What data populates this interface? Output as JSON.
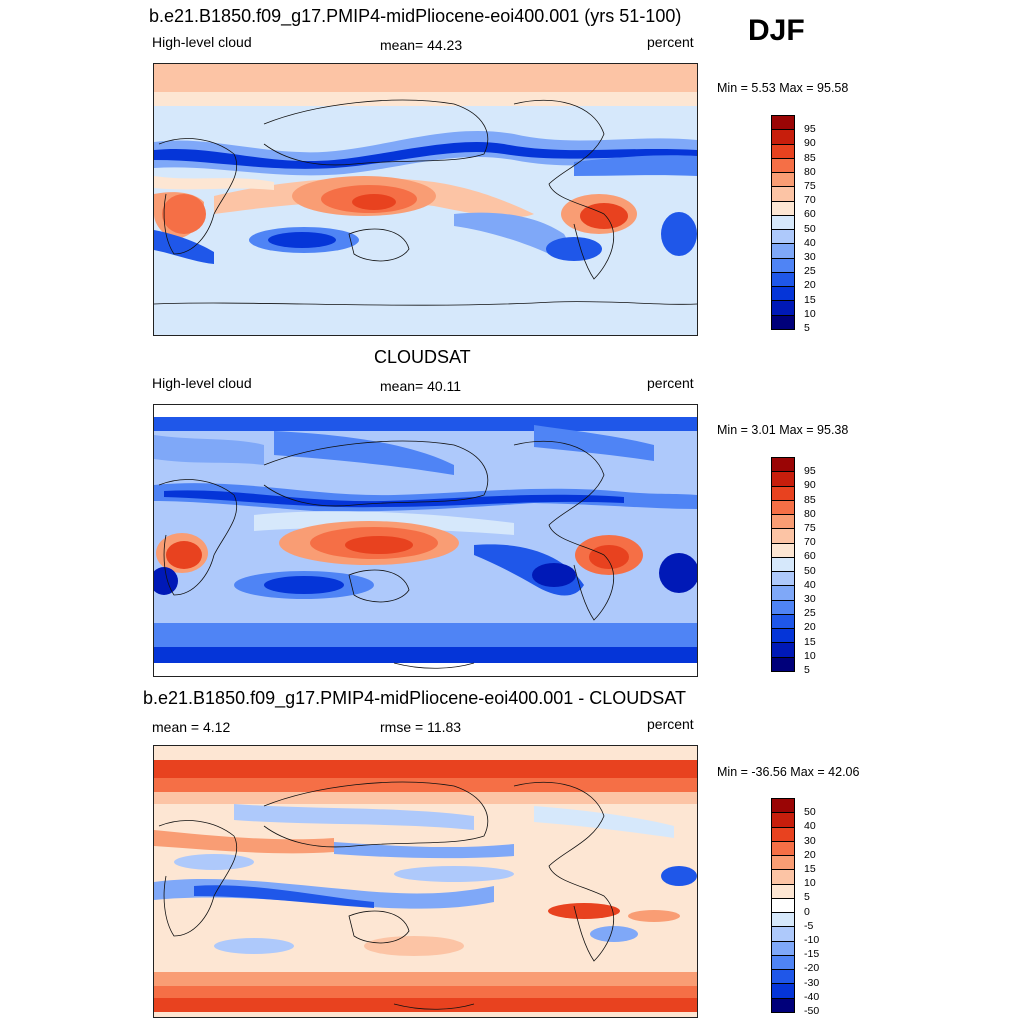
{
  "season": "DJF",
  "colors": [
    "#00007a",
    "#0019b7",
    "#0535d8",
    "#1f57e9",
    "#4f84f5",
    "#7fa8f8",
    "#aec9fb",
    "#d6e8fb",
    "#fde6d3",
    "#fcc4a5",
    "#f99d74",
    "#f56f46",
    "#e8421f",
    "#c71e0c",
    "#9a0505"
  ],
  "panels": [
    {
      "title": "b.e21.B1850.f09_g17.PMIP4-midPliocene-eoi400.001 (yrs 51-100)",
      "left": "High-level cloud",
      "center": "mean=  44.23",
      "right": "percent",
      "minmax": "Min =   5.53 Max =  95.58",
      "levels": [
        "95",
        "90",
        "85",
        "80",
        "75",
        "70",
        "60",
        "50",
        "40",
        "30",
        "25",
        "20",
        "15",
        "10",
        "5"
      ]
    },
    {
      "title": "CLOUDSAT",
      "left": "High-level cloud",
      "center": "mean=  40.11",
      "right": "percent",
      "minmax": "Min =   3.01 Max =  95.38",
      "levels": [
        "95",
        "90",
        "85",
        "80",
        "75",
        "70",
        "60",
        "50",
        "40",
        "30",
        "25",
        "20",
        "15",
        "10",
        "5"
      ]
    },
    {
      "title": "b.e21.B1850.f09_g17.PMIP4-midPliocene-eoi400.001 - CLOUDSAT",
      "left": "mean =   4.12",
      "center": "rmse =  11.83",
      "right": "percent",
      "minmax": "Min = -36.56 Max =  42.06",
      "levels": [
        "50",
        "40",
        "30",
        "20",
        "15",
        "10",
        "5",
        "0",
        "-5",
        "-10",
        "-15",
        "-20",
        "-30",
        "-40",
        "-50"
      ]
    }
  ]
}
